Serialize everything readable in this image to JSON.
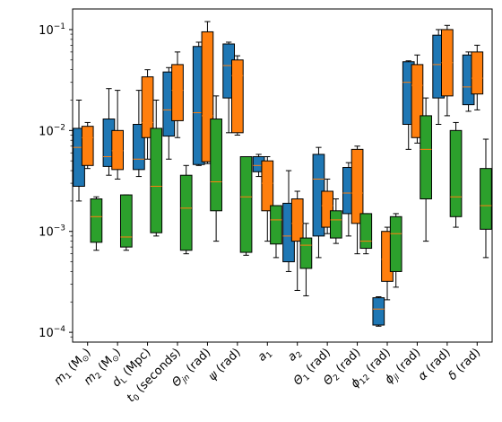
{
  "chart_data": {
    "type": "box",
    "yscale": "log",
    "ylim": [
      8e-05,
      0.16
    ],
    "y_ticks": [
      {
        "value": 0.0001,
        "base": "10",
        "exp": "−4"
      },
      {
        "value": 0.001,
        "base": "10",
        "exp": "−3"
      },
      {
        "value": 0.01,
        "base": "10",
        "exp": "−2"
      },
      {
        "value": 0.1,
        "base": "10",
        "exp": "−1"
      }
    ],
    "categories": [
      {
        "main": "m",
        "sub": "1",
        "rest": " (M",
        "sun": "⊙",
        "end": ")"
      },
      {
        "main": "m",
        "sub": "2",
        "rest": " (M",
        "sun": "⊙",
        "end": ")"
      },
      {
        "main": "d",
        "sub": "L",
        "rest": " (Mpc)",
        "sun": "",
        "end": ""
      },
      {
        "main": "t",
        "sub": "0",
        "rest": " (seconds)",
        "sun": "",
        "end": ""
      },
      {
        "main": "Θ",
        "sub": "jn",
        "rest": " (rad)",
        "sun": "",
        "end": ""
      },
      {
        "main": "ψ",
        "sub": "",
        "rest": " (rad)",
        "sun": "",
        "end": ""
      },
      {
        "main": "a",
        "sub": "1",
        "rest": "",
        "sun": "",
        "end": ""
      },
      {
        "main": "a",
        "sub": "2",
        "rest": "",
        "sun": "",
        "end": ""
      },
      {
        "main": "Θ",
        "sub": "1",
        "rest": " (rad)",
        "sun": "",
        "end": ""
      },
      {
        "main": "Θ",
        "sub": "2",
        "rest": " (rad)",
        "sun": "",
        "end": ""
      },
      {
        "main": "ϕ",
        "sub": "12",
        "rest": " (rad)",
        "sun": "",
        "end": ""
      },
      {
        "main": "ϕ",
        "sub": "jl",
        "rest": " (rad)",
        "sun": "",
        "end": ""
      },
      {
        "main": "α",
        "sub": "",
        "rest": " (rad)",
        "sun": "",
        "end": ""
      },
      {
        "main": "δ",
        "sub": "",
        "rest": " (rad)",
        "sun": "",
        "end": ""
      }
    ],
    "series": [
      {
        "color": "#1f77b4",
        "boxes": [
          [
            0.002,
            0.0028,
            0.0068,
            0.0105,
            0.02
          ],
          [
            0.0036,
            0.0044,
            0.0055,
            0.013,
            0.026
          ],
          [
            0.0035,
            0.0041,
            0.0052,
            0.0115,
            0.025
          ],
          [
            0.0052,
            0.0088,
            0.016,
            0.038,
            0.042
          ],
          [
            0.0045,
            0.0046,
            0.015,
            0.068,
            0.075
          ],
          [
            0.0095,
            0.021,
            0.044,
            0.072,
            0.075
          ],
          [
            0.0035,
            0.0039,
            0.0045,
            0.0055,
            0.0058
          ],
          [
            0.0004,
            0.0005,
            0.0009,
            0.0019,
            0.004
          ],
          [
            0.00055,
            0.0009,
            0.0033,
            0.0058,
            0.0068
          ],
          [
            0.0009,
            0.0015,
            0.0024,
            0.0043,
            0.0048
          ],
          [
            0.000115,
            0.000118,
            0.00017,
            0.00022,
            0.000225
          ],
          [
            0.0065,
            0.0115,
            0.03,
            0.048,
            0.049
          ],
          [
            0.0115,
            0.021,
            0.045,
            0.088,
            0.1
          ],
          [
            0.0155,
            0.018,
            0.027,
            0.056,
            0.06
          ]
        ]
      },
      {
        "color": "#ff7f0e",
        "boxes": [
          [
            0.0042,
            0.0045,
            0.0085,
            0.011,
            0.012
          ],
          [
            0.0033,
            0.0041,
            0.0063,
            0.01,
            0.025
          ],
          [
            0.0052,
            0.0085,
            0.012,
            0.034,
            0.04
          ],
          [
            0.0085,
            0.0125,
            0.025,
            0.045,
            0.06
          ],
          [
            0.0047,
            0.0049,
            0.014,
            0.095,
            0.12
          ],
          [
            0.009,
            0.0095,
            0.035,
            0.05,
            0.055
          ],
          [
            0.0008,
            0.0016,
            0.003,
            0.005,
            0.0055
          ],
          [
            0.00026,
            0.0008,
            0.0012,
            0.0021,
            0.0025
          ],
          [
            0.00095,
            0.0011,
            0.0018,
            0.0025,
            0.0033
          ],
          [
            0.0006,
            0.0012,
            0.0024,
            0.0065,
            0.007
          ],
          [
            0.00021,
            0.00032,
            0.00053,
            0.001,
            0.0011
          ],
          [
            0.0075,
            0.0085,
            0.028,
            0.045,
            0.056
          ],
          [
            0.014,
            0.022,
            0.047,
            0.1,
            0.11
          ],
          [
            0.016,
            0.023,
            0.033,
            0.06,
            0.07
          ]
        ]
      },
      {
        "color": "#2ca02c",
        "boxes": [
          [
            0.00065,
            0.00078,
            0.0014,
            0.0021,
            0.0022
          ],
          [
            0.00065,
            0.0007,
            0.00088,
            0.0023,
            0.0023
          ],
          [
            0.0009,
            0.00097,
            0.0028,
            0.0105,
            0.02
          ],
          [
            0.0006,
            0.00065,
            0.0017,
            0.0036,
            0.0045
          ],
          [
            0.0008,
            0.0016,
            0.0031,
            0.013,
            0.022
          ],
          [
            0.00058,
            0.00062,
            0.0022,
            0.0055,
            0.0055
          ],
          [
            0.00055,
            0.00075,
            0.0013,
            0.0018,
            0.0018
          ],
          [
            0.00023,
            0.00043,
            0.00073,
            0.00086,
            0.0012
          ],
          [
            0.00076,
            0.00086,
            0.0013,
            0.0016,
            0.0021
          ],
          [
            0.0006,
            0.00068,
            0.0008,
            0.0015,
            0.0015
          ],
          [
            0.00028,
            0.0004,
            0.00095,
            0.0014,
            0.0015
          ],
          [
            0.0008,
            0.0021,
            0.0065,
            0.014,
            0.021
          ],
          [
            0.0011,
            0.0014,
            0.0022,
            0.01,
            0.012
          ],
          [
            0.00055,
            0.00105,
            0.0018,
            0.0042,
            0.0082
          ]
        ]
      }
    ],
    "median_color": "#ff7f0e"
  }
}
